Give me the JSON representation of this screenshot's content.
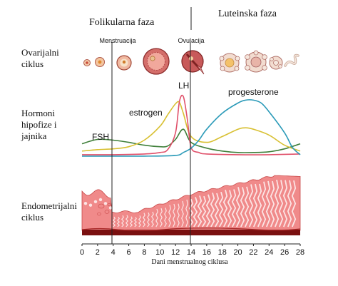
{
  "phases": {
    "follicular": "Folikularna faza",
    "luteal": "Luteinska faza"
  },
  "rows": {
    "ovarian": [
      "Ovarijalni",
      "ciklus"
    ],
    "hormones": [
      "Hormoni",
      "hipofize i",
      "jajnika"
    ],
    "endometrial": [
      "Endometrijalni",
      "ciklus"
    ]
  },
  "markers": {
    "menstruation": "Menstruacija",
    "ovulation": "Ovulacija"
  },
  "hormone_labels": {
    "fsh": "FSH",
    "estrogen": "estrogen",
    "lh": "LH",
    "progesterone": "progesterone"
  },
  "axis": {
    "title": "Dani menstrualnog ciklusa",
    "ticks": [
      "0",
      "2",
      "4",
      "6",
      "8",
      "10",
      "12",
      "14",
      "16",
      "18",
      "20",
      "22",
      "24",
      "26",
      "28"
    ]
  },
  "colors": {
    "fsh": "#3f7f3a",
    "estrogen": "#d8c032",
    "lh": "#e0506a",
    "progesterone": "#2a9ab8",
    "endometrium": "#f08a8a",
    "endometrium_dark": "#7a1010"
  },
  "chart_data": {
    "type": "line",
    "xlabel": "Dani menstrualnog ciklusa",
    "xlim": [
      0,
      28
    ],
    "series": [
      {
        "name": "FSH",
        "x": [
          0,
          2,
          4,
          6,
          8,
          10,
          11,
          12,
          13,
          14,
          16,
          18,
          20,
          22,
          24,
          26,
          28
        ],
        "values": [
          0.2,
          0.26,
          0.25,
          0.22,
          0.18,
          0.16,
          0.17,
          0.26,
          0.4,
          0.22,
          0.14,
          0.1,
          0.08,
          0.08,
          0.09,
          0.13,
          0.2
        ]
      },
      {
        "name": "estrogen",
        "x": [
          0,
          2,
          4,
          6,
          8,
          10,
          11,
          12,
          12.5,
          13,
          14,
          16,
          18,
          20,
          21,
          22,
          24,
          26,
          28
        ],
        "values": [
          0.1,
          0.12,
          0.13,
          0.16,
          0.25,
          0.44,
          0.6,
          0.75,
          0.77,
          0.62,
          0.3,
          0.22,
          0.3,
          0.4,
          0.42,
          0.4,
          0.32,
          0.18,
          0.1
        ]
      },
      {
        "name": "LH",
        "x": [
          0,
          4,
          8,
          10,
          11,
          12,
          12.5,
          13,
          13.5,
          14,
          15,
          16,
          20,
          24,
          28
        ],
        "values": [
          0.05,
          0.05,
          0.06,
          0.08,
          0.12,
          0.35,
          0.78,
          0.85,
          0.55,
          0.15,
          0.08,
          0.06,
          0.05,
          0.05,
          0.06
        ]
      },
      {
        "name": "progesterone",
        "x": [
          0,
          4,
          8,
          12,
          13,
          14,
          15,
          16,
          18,
          20,
          21,
          22,
          23,
          24,
          26,
          27,
          28
        ],
        "values": [
          0.03,
          0.03,
          0.03,
          0.04,
          0.08,
          0.14,
          0.25,
          0.4,
          0.62,
          0.76,
          0.8,
          0.8,
          0.76,
          0.64,
          0.35,
          0.15,
          0.05
        ]
      }
    ]
  }
}
